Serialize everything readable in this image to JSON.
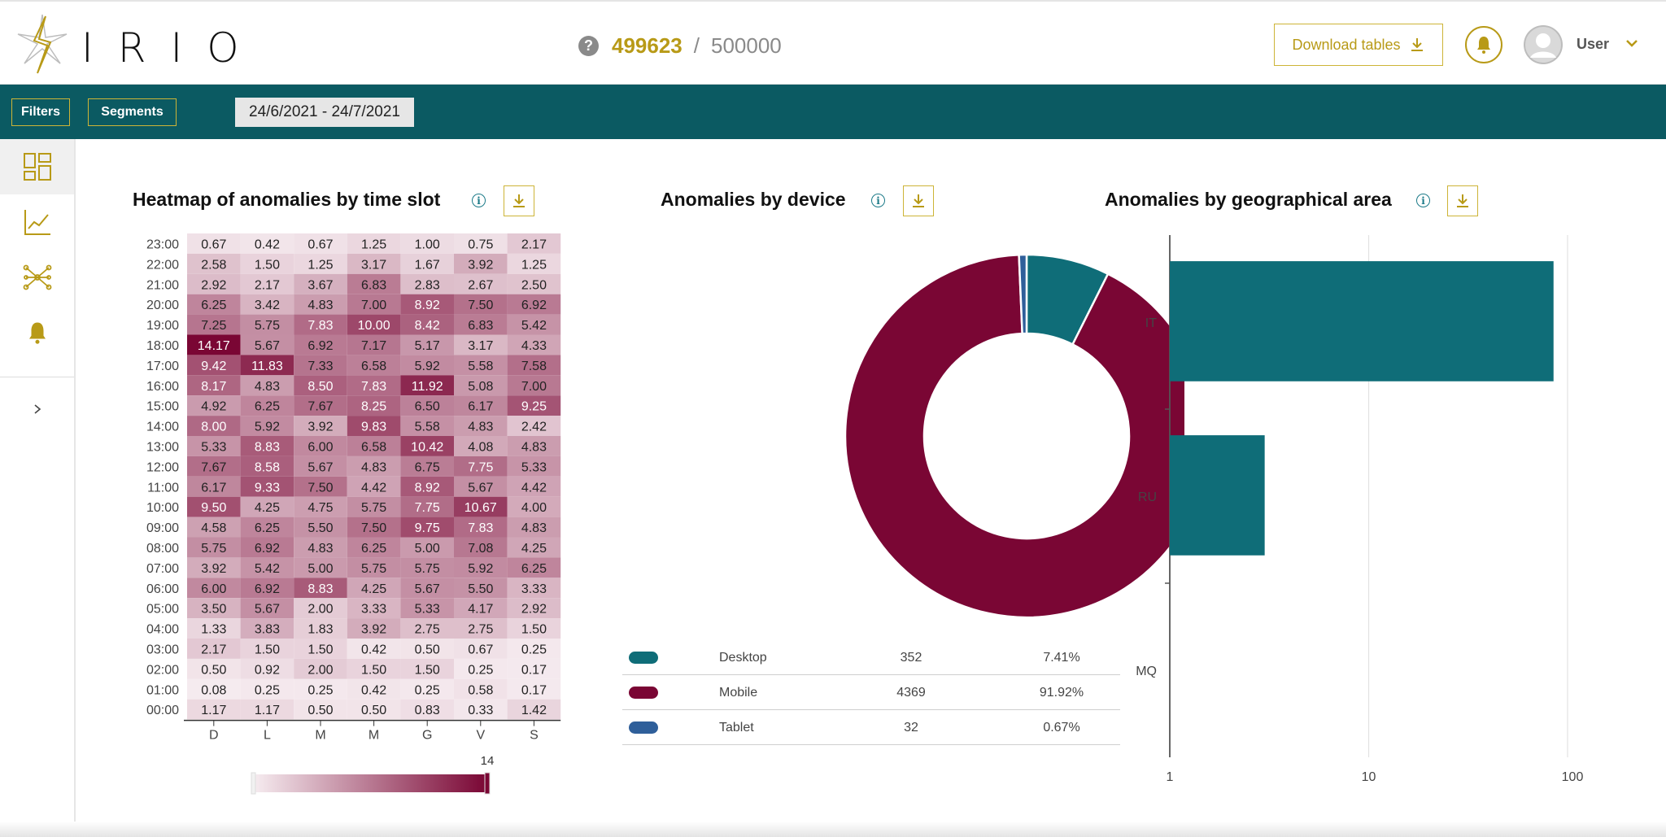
{
  "app": {
    "logo_text": "IRIO",
    "usage": {
      "used": "499623",
      "separator": "/",
      "total": "500000"
    },
    "download_tables_label": "Download tables",
    "user_label": "User"
  },
  "filterbar": {
    "filters_label": "Filters",
    "segments_label": "Segments",
    "date_range": "24/6/2021 - 24/7/2021"
  },
  "sidebar": {
    "items": [
      {
        "icon": "dashboard-icon",
        "active": true
      },
      {
        "icon": "line-chart-icon",
        "active": false
      },
      {
        "icon": "network-icon",
        "active": false
      },
      {
        "icon": "bell-icon",
        "active": false
      }
    ],
    "expand_icon": "chevron-right-icon"
  },
  "colors": {
    "teal": "#0b5a62",
    "gold": "#b89a17",
    "desktop": "#0f6d78",
    "mobile": "#7a0634",
    "tablet": "#2f5f9a"
  },
  "panels": {
    "heatmap_title": "Heatmap of anomalies by time slot",
    "device_title": "Anomalies by device",
    "geo_title": "Anomalies by geographical area"
  },
  "chart_data": [
    {
      "type": "heatmap",
      "title": "Heatmap of anomalies by time slot",
      "x_labels": [
        "D",
        "L",
        "M",
        "M",
        "G",
        "V",
        "S"
      ],
      "y_labels": [
        "23:00",
        "22:00",
        "21:00",
        "20:00",
        "19:00",
        "18:00",
        "17:00",
        "16:00",
        "15:00",
        "14:00",
        "13:00",
        "12:00",
        "11:00",
        "10:00",
        "09:00",
        "08:00",
        "07:00",
        "06:00",
        "05:00",
        "04:00",
        "03:00",
        "02:00",
        "01:00",
        "00:00"
      ],
      "values": [
        [
          "0.67",
          "0.42",
          "0.67",
          "1.25",
          "1.00",
          "0.75",
          "2.17"
        ],
        [
          "2.58",
          "1.50",
          "1.25",
          "3.17",
          "1.67",
          "3.92",
          "1.25"
        ],
        [
          "2.92",
          "2.17",
          "3.67",
          "6.83",
          "2.83",
          "2.67",
          "2.50"
        ],
        [
          "6.25",
          "3.42",
          "4.83",
          "7.00",
          "8.92",
          "7.50",
          "6.92"
        ],
        [
          "7.25",
          "5.75",
          "7.83",
          "10.00",
          "8.42",
          "6.83",
          "5.42"
        ],
        [
          "14.17",
          "5.67",
          "6.92",
          "7.17",
          "5.17",
          "3.17",
          "4.33"
        ],
        [
          "9.42",
          "11.83",
          "7.33",
          "6.58",
          "5.92",
          "5.58",
          "7.58"
        ],
        [
          "8.17",
          "4.83",
          "8.50",
          "7.83",
          "11.92",
          "5.08",
          "7.00"
        ],
        [
          "4.92",
          "6.25",
          "7.67",
          "8.25",
          "6.50",
          "6.17",
          "9.25"
        ],
        [
          "8.00",
          "5.92",
          "3.92",
          "9.83",
          "5.58",
          "4.83",
          "2.42"
        ],
        [
          "5.33",
          "8.83",
          "6.00",
          "6.58",
          "10.42",
          "4.08",
          "4.83"
        ],
        [
          "7.67",
          "8.58",
          "5.67",
          "4.83",
          "6.75",
          "7.75",
          "5.33"
        ],
        [
          "6.17",
          "9.33",
          "7.50",
          "4.42",
          "8.92",
          "5.67",
          "4.42"
        ],
        [
          "9.50",
          "4.25",
          "4.75",
          "5.75",
          "7.75",
          "10.67",
          "4.00"
        ],
        [
          "4.58",
          "6.25",
          "5.50",
          "7.50",
          "9.75",
          "7.83",
          "4.83"
        ],
        [
          "5.75",
          "6.92",
          "4.83",
          "6.25",
          "5.00",
          "7.08",
          "4.25"
        ],
        [
          "3.92",
          "5.42",
          "5.00",
          "5.75",
          "5.75",
          "5.92",
          "6.25"
        ],
        [
          "6.00",
          "6.92",
          "8.83",
          "4.25",
          "5.67",
          "5.50",
          "3.33"
        ],
        [
          "3.50",
          "5.67",
          "2.00",
          "3.33",
          "5.33",
          "4.17",
          "2.92"
        ],
        [
          "1.33",
          "3.83",
          "1.83",
          "3.92",
          "2.75",
          "2.75",
          "1.50"
        ],
        [
          "2.17",
          "1.50",
          "1.50",
          "0.42",
          "0.50",
          "0.67",
          "0.25"
        ],
        [
          "0.50",
          "0.92",
          "2.00",
          "1.50",
          "1.50",
          "0.25",
          "0.17"
        ],
        [
          "0.08",
          "0.25",
          "0.25",
          "0.42",
          "0.25",
          "0.58",
          "0.17"
        ],
        [
          "1.17",
          "1.17",
          "0.50",
          "0.50",
          "0.83",
          "0.33",
          "1.42"
        ]
      ],
      "scale_max": 14,
      "scale_max_label": "14"
    },
    {
      "type": "pie",
      "title": "Anomalies by device",
      "slices": [
        {
          "name": "Desktop",
          "value": 352,
          "value_label": "352",
          "percent": "7.41%",
          "color": "#0f6d78"
        },
        {
          "name": "Mobile",
          "value": 4369,
          "value_label": "4369",
          "percent": "91.92%",
          "color": "#7a0634"
        },
        {
          "name": "Tablet",
          "value": 32,
          "value_label": "32",
          "percent": "0.67%",
          "color": "#2f5f9a"
        }
      ]
    },
    {
      "type": "bar",
      "orientation": "horizontal",
      "title": "Anomalies by geographical area",
      "categories": [
        "IT",
        "RU",
        "MQ"
      ],
      "values": [
        85,
        3,
        1
      ],
      "x_scale": "log",
      "xlim": [
        1,
        100
      ],
      "x_ticks": [
        "1",
        "10",
        "100"
      ],
      "color": "#0f6d78"
    }
  ]
}
